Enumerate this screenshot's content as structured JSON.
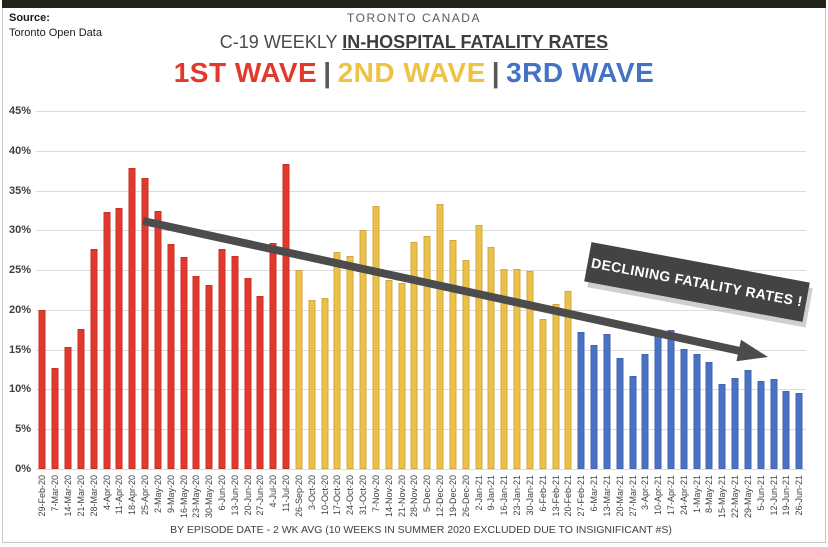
{
  "frame": {
    "source_label": "Source:",
    "source_value": "Toronto Open Data"
  },
  "header": {
    "location": "TORONTO CANADA",
    "title_prefix": "C-19 WEEKLY ",
    "title_emphasis": "IN-HOSPITAL FATALITY RATES",
    "wave_separator": "|",
    "waves": [
      {
        "label": "1ST WAVE",
        "color": "#e2392c"
      },
      {
        "label": "2ND WAVE",
        "color": "#eec243"
      },
      {
        "label": "3RD WAVE",
        "color": "#4472c4"
      }
    ]
  },
  "footer": {
    "caption": "BY EPISODE DATE - 2 WK AVG (10 WEEKS IN SUMMER 2020 EXCLUDED DUE TO INSIGNIFICANT #S)"
  },
  "chart_data": {
    "type": "bar",
    "title": "C-19 WEEKLY IN-HOSPITAL FATALITY RATES",
    "subtitle": "TORONTO CANADA",
    "xlabel": "",
    "ylabel": "",
    "ylim": [
      0,
      45
    ],
    "yticks": [
      "45%",
      "40%",
      "35%",
      "30%",
      "25%",
      "20%",
      "15%",
      "10%",
      "5%",
      "0%"
    ],
    "grid": true,
    "legend_position": "none",
    "annotation": "DECLINING FATALITY RATES !",
    "trendline": {
      "description": "declining arrow from ~31% at 18-Apr-20 to ~14% at 26-Jun-21",
      "color": "#4c4c4c"
    },
    "wave_colors": {
      "1": "#e2392c",
      "2": "#ecc148",
      "3": "#4a72c4"
    },
    "wave_names": {
      "1": "1ST WAVE",
      "2": "2ND WAVE",
      "3": "3RD WAVE"
    },
    "bars": [
      {
        "label": "29-Feb-20",
        "value": 20.0,
        "wave": 1
      },
      {
        "label": "7-Mar-20",
        "value": 12.7,
        "wave": 1
      },
      {
        "label": "14-Mar-20",
        "value": 15.3,
        "wave": 1
      },
      {
        "label": "21-Mar-20",
        "value": 17.6,
        "wave": 1
      },
      {
        "label": "28-Mar-20",
        "value": 27.6,
        "wave": 1
      },
      {
        "label": "4-Apr-20",
        "value": 32.3,
        "wave": 1
      },
      {
        "label": "11-Apr-20",
        "value": 32.8,
        "wave": 1
      },
      {
        "label": "18-Apr-20",
        "value": 37.8,
        "wave": 1
      },
      {
        "label": "25-Apr-20",
        "value": 36.6,
        "wave": 1
      },
      {
        "label": "2-May-20",
        "value": 32.4,
        "wave": 1
      },
      {
        "label": "9-May-20",
        "value": 28.3,
        "wave": 1
      },
      {
        "label": "16-May-20",
        "value": 26.6,
        "wave": 1
      },
      {
        "label": "23-May-20",
        "value": 24.3,
        "wave": 1
      },
      {
        "label": "30-May-20",
        "value": 23.1,
        "wave": 1
      },
      {
        "label": "6-Jun-20",
        "value": 27.7,
        "wave": 1
      },
      {
        "label": "13-Jun-20",
        "value": 26.8,
        "wave": 1
      },
      {
        "label": "20-Jun-20",
        "value": 24.0,
        "wave": 1
      },
      {
        "label": "27-Jun-20",
        "value": 21.8,
        "wave": 1
      },
      {
        "label": "4-Jul-20",
        "value": 28.4,
        "wave": 1
      },
      {
        "label": "11-Jul-20",
        "value": 38.4,
        "wave": 1
      },
      {
        "label": "26-Sep-20",
        "value": 25.0,
        "wave": 2
      },
      {
        "label": "3-Oct-20",
        "value": 21.3,
        "wave": 2
      },
      {
        "label": "10-Oct-20",
        "value": 21.5,
        "wave": 2
      },
      {
        "label": "17-Oct-20",
        "value": 27.3,
        "wave": 2
      },
      {
        "label": "24-Oct-20",
        "value": 26.8,
        "wave": 2
      },
      {
        "label": "31-Oct-20",
        "value": 30.1,
        "wave": 2
      },
      {
        "label": "7-Nov-20",
        "value": 33.0,
        "wave": 2
      },
      {
        "label": "14-Nov-20",
        "value": 23.8,
        "wave": 2
      },
      {
        "label": "21-Nov-20",
        "value": 23.4,
        "wave": 2
      },
      {
        "label": "28-Nov-20",
        "value": 28.5,
        "wave": 2
      },
      {
        "label": "5-Dec-20",
        "value": 29.3,
        "wave": 2
      },
      {
        "label": "12-Dec-20",
        "value": 33.3,
        "wave": 2
      },
      {
        "label": "19-Dec-20",
        "value": 28.8,
        "wave": 2
      },
      {
        "label": "26-Dec-20",
        "value": 26.3,
        "wave": 2
      },
      {
        "label": "2-Jan-21",
        "value": 30.7,
        "wave": 2
      },
      {
        "label": "9-Jan-21",
        "value": 27.9,
        "wave": 2
      },
      {
        "label": "16-Jan-21",
        "value": 25.2,
        "wave": 2
      },
      {
        "label": "23-Jan-21",
        "value": 25.2,
        "wave": 2
      },
      {
        "label": "30-Jan-21",
        "value": 24.9,
        "wave": 2
      },
      {
        "label": "6-Feb-21",
        "value": 18.9,
        "wave": 2
      },
      {
        "label": "13-Feb-21",
        "value": 20.8,
        "wave": 2
      },
      {
        "label": "20-Feb-21",
        "value": 22.4,
        "wave": 2
      },
      {
        "label": "27-Feb-21",
        "value": 17.2,
        "wave": 3
      },
      {
        "label": "6-Mar-21",
        "value": 15.6,
        "wave": 3
      },
      {
        "label": "13-Mar-21",
        "value": 17.0,
        "wave": 3
      },
      {
        "label": "20-Mar-21",
        "value": 14.0,
        "wave": 3
      },
      {
        "label": "27-Mar-21",
        "value": 11.7,
        "wave": 3
      },
      {
        "label": "3-Apr-21",
        "value": 14.4,
        "wave": 3
      },
      {
        "label": "10-Apr-21",
        "value": 17.3,
        "wave": 3
      },
      {
        "label": "17-Apr-21",
        "value": 17.5,
        "wave": 3
      },
      {
        "label": "24-Apr-21",
        "value": 15.1,
        "wave": 3
      },
      {
        "label": "1-May-21",
        "value": 14.5,
        "wave": 3
      },
      {
        "label": "8-May-21",
        "value": 13.5,
        "wave": 3
      },
      {
        "label": "15-May-21",
        "value": 10.7,
        "wave": 3
      },
      {
        "label": "22-May-21",
        "value": 11.5,
        "wave": 3
      },
      {
        "label": "29-May-21",
        "value": 12.4,
        "wave": 3
      },
      {
        "label": "5-Jun-21",
        "value": 11.1,
        "wave": 3
      },
      {
        "label": "12-Jun-21",
        "value": 11.3,
        "wave": 3
      },
      {
        "label": "19-Jun-21",
        "value": 9.8,
        "wave": 3
      },
      {
        "label": "26-Jun-21",
        "value": 9.5,
        "wave": 3
      }
    ]
  }
}
